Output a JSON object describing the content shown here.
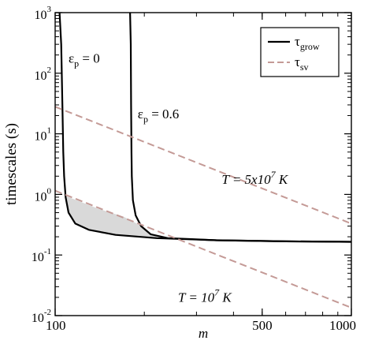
{
  "chart_data": {
    "type": "line",
    "xlabel": "m",
    "ylabel": "timescales (s)",
    "x_scale": "log",
    "y_scale": "log",
    "xlim": [
      100,
      1000
    ],
    "ylim": [
      0.01,
      1000
    ],
    "x_ticks": [
      {
        "value": 100,
        "label": "100"
      },
      {
        "value": 500,
        "label": "500"
      },
      {
        "value": 1000,
        "label": "1000"
      }
    ],
    "y_ticks": [
      {
        "value": 0.01,
        "base": "10",
        "exp": "-2"
      },
      {
        "value": 0.1,
        "base": "10",
        "exp": "-1"
      },
      {
        "value": 1,
        "base": "10",
        "exp": "0"
      },
      {
        "value": 10,
        "base": "10",
        "exp": "1"
      },
      {
        "value": 100,
        "base": "10",
        "exp": "2"
      },
      {
        "value": 1000,
        "base": "10",
        "exp": "3"
      }
    ],
    "legend": {
      "placement": "top-right",
      "items": [
        {
          "symbol": "τ",
          "sub": "grow",
          "style": "solid",
          "color": "#000000"
        },
        {
          "symbol": "τ",
          "sub": "sv",
          "style": "dashed",
          "color": "#c49a96"
        }
      ]
    },
    "series": [
      {
        "style": "solid",
        "color": "#000000",
        "points": [
          [
            103.5,
            1000
          ],
          [
            104.8,
            300
          ],
          [
            105.8,
            30
          ],
          [
            106.5,
            5
          ],
          [
            107.2,
            2
          ],
          [
            108.5,
            0.9
          ],
          [
            111,
            0.5
          ],
          [
            117,
            0.33
          ],
          [
            130,
            0.26
          ],
          [
            160,
            0.215
          ],
          [
            220,
            0.19
          ],
          [
            350,
            0.175
          ],
          [
            600,
            0.168
          ],
          [
            1000,
            0.165
          ]
        ]
      },
      {
        "style": "solid",
        "color": "#000000",
        "points": [
          [
            179,
            1000
          ],
          [
            180,
            300
          ],
          [
            180.5,
            30
          ],
          [
            181,
            5
          ],
          [
            181.5,
            2
          ],
          [
            183,
            0.8
          ],
          [
            187,
            0.45
          ],
          [
            195,
            0.3
          ],
          [
            210,
            0.22
          ],
          [
            240,
            0.19
          ],
          [
            350,
            0.175
          ],
          [
            600,
            0.168
          ],
          [
            1000,
            0.165
          ]
        ]
      },
      {
        "style": "dashed",
        "color": "#c49a96",
        "points": [
          [
            100,
            28
          ],
          [
            1000,
            0.33
          ]
        ]
      },
      {
        "style": "dashed",
        "color": "#c49a96",
        "points": [
          [
            100,
            1.15
          ],
          [
            1000,
            0.0135
          ]
        ]
      }
    ],
    "shaded_region": {
      "color": "#d9d9d9",
      "points": [
        [
          106.7,
          1
        ],
        [
          110,
          0.92
        ],
        [
          140,
          0.58
        ],
        [
          170,
          0.43
        ],
        [
          196,
          0.3
        ],
        [
          210,
          0.22
        ],
        [
          240,
          0.19
        ],
        [
          275,
          0.185
        ],
        [
          230,
          0.184
        ],
        [
          160,
          0.215
        ],
        [
          130,
          0.26
        ],
        [
          117,
          0.33
        ],
        [
          111,
          0.5
        ],
        [
          108.5,
          0.9
        ]
      ]
    },
    "annotations": [
      {
        "id": "ep0",
        "text": "ε",
        "sub": "p",
        "rest": " = 0",
        "x": 111,
        "y": 150
      },
      {
        "id": "ep06",
        "text": "ε",
        "sub": "p",
        "rest": " = 0.6",
        "x": 190,
        "y": 18
      },
      {
        "id": "t5e7",
        "text": "T = 5x10",
        "sup": "7",
        "rest": " K",
        "x": 365,
        "y": 1.5
      },
      {
        "id": "t1e7",
        "text": "T = 10",
        "sup": "7",
        "rest": " K",
        "x": 260,
        "y": 0.017
      }
    ]
  }
}
